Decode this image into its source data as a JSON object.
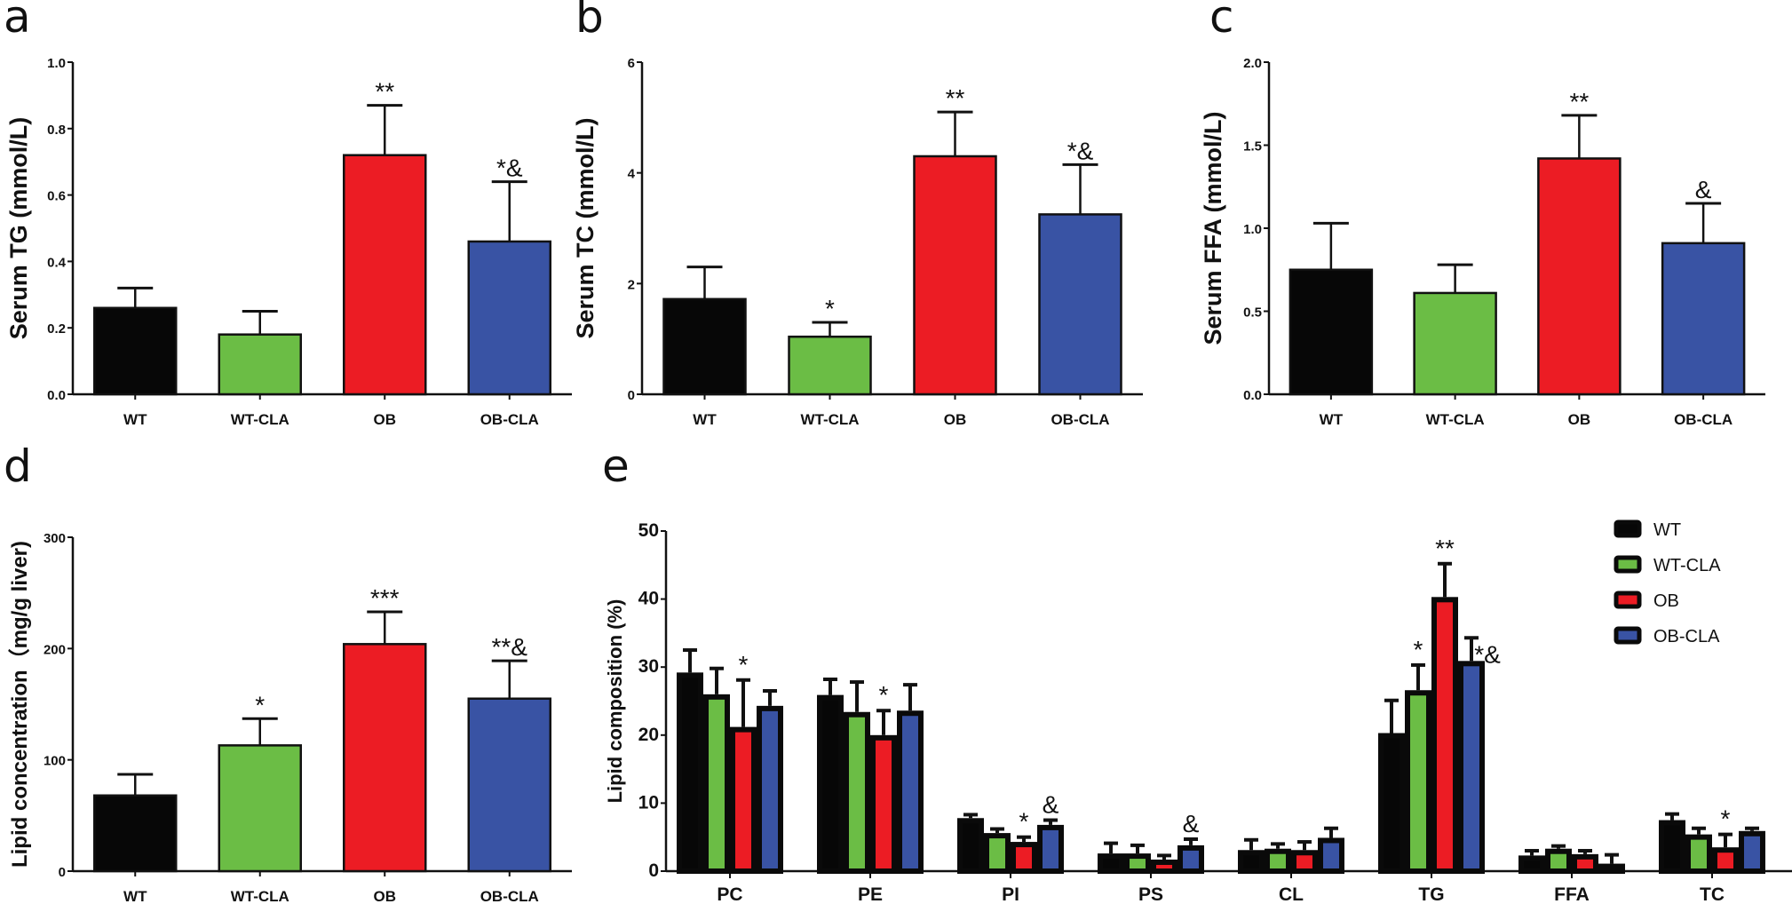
{
  "figure": {
    "groups": [
      "WT",
      "WT-CLA",
      "OB",
      "OB-CLA"
    ],
    "colors": {
      "WT": "#070707",
      "WT-CLA": "#6bbd45",
      "OB": "#ec1c24",
      "OB-CLA": "#3953a4"
    }
  },
  "chart_data": [
    {
      "id": "a",
      "panel_letter": "a",
      "type": "bar",
      "title": "",
      "xlabel": "",
      "ylabel": "Serum TG (mmol/L)",
      "ylim": [
        0,
        1.0
      ],
      "yticks": [
        "0.0",
        "0.2",
        "0.4",
        "0.6",
        "0.8",
        "1.0"
      ],
      "ytick_values": [
        0,
        0.2,
        0.4,
        0.6,
        0.8,
        1.0
      ],
      "categories": [
        "WT",
        "WT-CLA",
        "OB",
        "OB-CLA"
      ],
      "values": [
        0.26,
        0.18,
        0.72,
        0.46
      ],
      "error_upper": [
        0.32,
        0.25,
        0.87,
        0.64
      ],
      "annotations": [
        "",
        "",
        "**",
        "*&"
      ],
      "grid": false
    },
    {
      "id": "b",
      "panel_letter": "b",
      "type": "bar",
      "title": "",
      "xlabel": "",
      "ylabel": "Serum TC (mmol/L)",
      "ylim": [
        0,
        6
      ],
      "yticks": [
        "0",
        "2",
        "4",
        "6"
      ],
      "ytick_values": [
        0,
        2,
        4,
        6
      ],
      "categories": [
        "WT",
        "WT-CLA",
        "OB",
        "OB-CLA"
      ],
      "values": [
        1.72,
        1.04,
        4.3,
        3.25
      ],
      "error_upper": [
        2.3,
        1.3,
        5.1,
        4.15
      ],
      "annotations": [
        "",
        "*",
        "**",
        "*&"
      ],
      "grid": false
    },
    {
      "id": "c",
      "panel_letter": "c",
      "type": "bar",
      "title": "",
      "xlabel": "",
      "ylabel": "Serum FFA (mmol/L)",
      "ylim": [
        0,
        2.0
      ],
      "yticks": [
        "0.0",
        "0.5",
        "1.0",
        "1.5",
        "2.0"
      ],
      "ytick_values": [
        0,
        0.5,
        1.0,
        1.5,
        2.0
      ],
      "categories": [
        "WT",
        "WT-CLA",
        "OB",
        "OB-CLA"
      ],
      "values": [
        0.75,
        0.61,
        1.42,
        0.91
      ],
      "error_upper": [
        1.03,
        0.78,
        1.68,
        1.15
      ],
      "annotations": [
        "",
        "",
        "**",
        "&"
      ],
      "grid": false
    },
    {
      "id": "d",
      "panel_letter": "d",
      "type": "bar",
      "title": "",
      "xlabel": "",
      "ylabel": "Lipid concentration（mg/g liver)",
      "ylim": [
        0,
        300
      ],
      "yticks": [
        "0",
        "100",
        "200",
        "300"
      ],
      "ytick_values": [
        0,
        100,
        200,
        300
      ],
      "categories": [
        "WT",
        "WT-CLA",
        "OB",
        "OB-CLA"
      ],
      "values": [
        68,
        113,
        204,
        155
      ],
      "error_upper": [
        87,
        137,
        233,
        189
      ],
      "annotations": [
        "",
        "*",
        "***",
        "**&"
      ],
      "grid": false
    },
    {
      "id": "e",
      "panel_letter": "e",
      "type": "bar",
      "title": "",
      "xlabel": "",
      "ylabel": "Lipid composition (%)",
      "ylim": [
        0,
        50
      ],
      "yticks": [
        "0",
        "10",
        "20",
        "30",
        "40",
        "50"
      ],
      "ytick_values": [
        0,
        10,
        20,
        30,
        40,
        50
      ],
      "categories": [
        "PC",
        "PE",
        "PI",
        "PS",
        "CL",
        "TG",
        "FFA",
        "TC"
      ],
      "legend": {
        "position": "top-right",
        "entries": [
          "WT",
          "WT-CLA",
          "OB",
          "OB-CLA"
        ]
      },
      "series": [
        {
          "name": "WT",
          "values": [
            29.2,
            25.9,
            7.8,
            2.6,
            3.1,
            20.3,
            2.3,
            7.5
          ],
          "error_upper": [
            32.5,
            28.2,
            8.3,
            4.1,
            4.6,
            25.1,
            3.0,
            8.4
          ],
          "annotations": [
            "",
            "",
            "",
            "",
            "",
            "",
            "",
            ""
          ]
        },
        {
          "name": "WT-CLA",
          "values": [
            26.0,
            23.4,
            5.6,
            2.6,
            3.3,
            26.6,
            3.3,
            5.4
          ],
          "error_upper": [
            29.8,
            27.8,
            6.2,
            3.8,
            4.0,
            30.3,
            3.7,
            6.3
          ],
          "annotations": [
            "",
            "",
            "",
            "",
            "",
            "*",
            "",
            ""
          ]
        },
        {
          "name": "OB",
          "values": [
            21.2,
            20.0,
            4.3,
            1.7,
            3.1,
            40.3,
            2.5,
            3.5
          ],
          "error_upper": [
            28.1,
            23.6,
            5.0,
            2.3,
            4.3,
            45.2,
            3.0,
            5.4
          ],
          "annotations": [
            "*",
            "*",
            "*",
            "",
            "",
            "**",
            "",
            "*"
          ]
        },
        {
          "name": "OB-CLA",
          "values": [
            24.3,
            23.6,
            6.8,
            3.8,
            4.9,
            30.9,
            1.1,
            5.9
          ],
          "error_upper": [
            26.5,
            27.4,
            7.5,
            4.7,
            6.3,
            34.3,
            2.4,
            6.3
          ],
          "annotations": [
            "",
            "",
            "&",
            "&",
            "",
            "*&",
            "",
            ""
          ]
        }
      ],
      "grid": false
    }
  ]
}
